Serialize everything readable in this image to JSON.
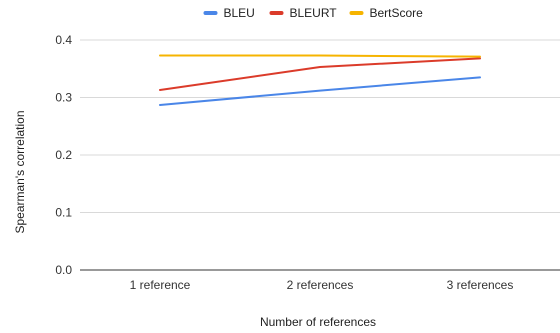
{
  "chart_data": {
    "type": "line",
    "categories": [
      "1 reference",
      "2 references",
      "3 references"
    ],
    "series": [
      {
        "name": "BLEU",
        "values": [
          0.287,
          0.312,
          0.335
        ],
        "color": "#4a86e8"
      },
      {
        "name": "BLEURT",
        "values": [
          0.313,
          0.353,
          0.368
        ],
        "color": "#db3b2a"
      },
      {
        "name": "BertScore",
        "values": [
          0.373,
          0.373,
          0.371
        ],
        "color": "#f6b400"
      }
    ],
    "xlabel": "Number of references",
    "ylabel": "Spearman's correlation",
    "ylim": [
      0,
      0.4
    ],
    "yticks": [
      "0.0",
      "0.1",
      "0.2",
      "0.3",
      "0.4"
    ],
    "grid": true,
    "legend_position": "top-center"
  }
}
